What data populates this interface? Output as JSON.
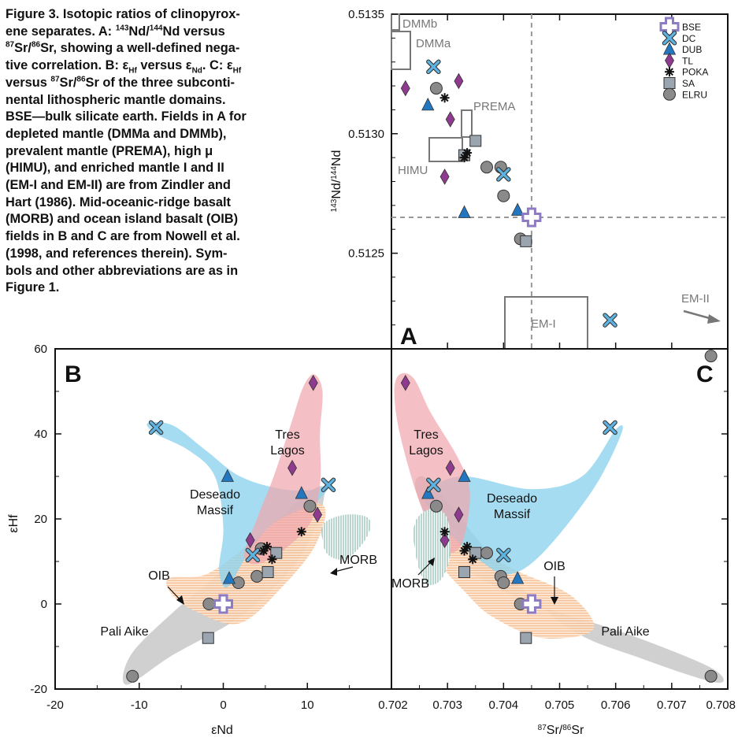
{
  "caption": {
    "lines": [
      "Figure 3. Isotopic ratios of clinopyrox-",
      "ene separates. A: {143}Nd/{144}Nd versus",
      "{87}Sr/{86}Sr, showing a well-defined nega-",
      "tive correlation. B: ε[Hf] versus ε[Nd]. C: ε[Hf]",
      "versus {87}Sr/{86}Sr of the three subconti-",
      "nental lithospheric mantle domains.",
      "BSE—bulk silicate earth. Fields in A for",
      "depleted mantle (DMMa and DMMb),",
      "prevalent mantle (PREMA), high μ",
      "(HIMU), and enriched mantle I and II",
      "(EM-I and EM-II) are from Zindler and",
      "Hart (1986). Mid-oceanic-ridge basalt",
      "(MORB) and ocean island basalt (OIB)",
      "fields in B and C are from Nowell et al.",
      "(1998, and references therein). Sym-",
      "bols and other abbreviations are as in",
      "Figure 1."
    ]
  },
  "legend": [
    {
      "label": "BSE",
      "marker": "cross",
      "color": "#8e7cc3"
    },
    {
      "label": "DC",
      "marker": "x",
      "color": "#5fb3e0"
    },
    {
      "label": "DUB",
      "marker": "triangle",
      "color": "#2277c0"
    },
    {
      "label": "TL",
      "marker": "diamond",
      "color": "#8e3a8e"
    },
    {
      "label": "POKA",
      "marker": "star",
      "color": "#111111"
    },
    {
      "label": "SA",
      "marker": "square",
      "color": "#9aa5b0"
    },
    {
      "label": "ELRU",
      "marker": "circle",
      "color": "#8a8a8a"
    }
  ],
  "fields_A": {
    "dmmb": "DMMb",
    "dmma": "DMMa",
    "prema": "PREMA",
    "himu": "HIMU",
    "em1": "EM-I",
    "em2": "EM-II"
  },
  "regions": {
    "tres_lagos": "Tres Lagos",
    "deseado": "Deseado Massif",
    "pali_aike": "Pali Aike",
    "morb": "MORB",
    "oib": "OIB"
  },
  "panels": {
    "A": "A",
    "B": "B",
    "C": "C"
  },
  "chart_data": [
    {
      "panel": "A",
      "type": "scatter",
      "xlabel": "",
      "ylabel": "143Nd/144Nd",
      "xlim": [
        0.702,
        0.708
      ],
      "ylim": [
        0.5121,
        0.5135
      ],
      "yticks": [
        "0.5125",
        "0.5130",
        "0.5135"
      ],
      "reference_lines": {
        "x": 0.7045,
        "y": 0.51265
      },
      "series": [
        {
          "name": "BSE",
          "points": [
            [
              0.7045,
              0.51265
            ]
          ]
        },
        {
          "name": "DC",
          "points": [
            [
              0.70275,
              0.51328
            ],
            [
              0.704,
              0.51283
            ],
            [
              0.7059,
              0.51222
            ]
          ]
        },
        {
          "name": "DUB",
          "points": [
            [
              0.70265,
              0.51312
            ],
            [
              0.7033,
              0.51267
            ],
            [
              0.70425,
              0.51268
            ]
          ]
        },
        {
          "name": "TL",
          "points": [
            [
              0.70225,
              0.51319
            ],
            [
              0.7032,
              0.51322
            ],
            [
              0.70305,
              0.51306
            ],
            [
              0.70295,
              0.51282
            ]
          ]
        },
        {
          "name": "POKA",
          "points": [
            [
              0.70295,
              0.51315
            ],
            [
              0.70335,
              0.51292
            ],
            [
              0.7033,
              0.5129
            ]
          ]
        },
        {
          "name": "SA",
          "points": [
            [
              0.7033,
              0.51291
            ],
            [
              0.7035,
              0.51297
            ],
            [
              0.7044,
              0.51255
            ]
          ]
        },
        {
          "name": "ELRU",
          "points": [
            [
              0.7028,
              0.51319
            ],
            [
              0.7037,
              0.51286
            ],
            [
              0.70395,
              0.51286
            ],
            [
              0.704,
              0.51274
            ],
            [
              0.7043,
              0.51256
            ],
            [
              0.7077,
              0.51207
            ]
          ]
        }
      ]
    },
    {
      "panel": "B",
      "type": "scatter",
      "xlabel": "εNd",
      "ylabel": "εHf",
      "xlim": [
        -20,
        20
      ],
      "ylim": [
        -20,
        60
      ],
      "xticks": [
        "-20",
        "-10",
        "0",
        "10"
      ],
      "yticks": [
        "-20",
        "0",
        "20",
        "40",
        "60"
      ],
      "series": [
        {
          "name": "BSE",
          "points": [
            [
              0,
              0
            ]
          ]
        },
        {
          "name": "DC",
          "points": [
            [
              -8,
              41.5
            ],
            [
              3.5,
              11.5
            ],
            [
              12.5,
              28
            ]
          ]
        },
        {
          "name": "DUB",
          "points": [
            [
              0.5,
              30
            ],
            [
              0.7,
              6
            ],
            [
              9.3,
              26
            ]
          ]
        },
        {
          "name": "TL",
          "points": [
            [
              10.7,
              52
            ],
            [
              8.2,
              32
            ],
            [
              3.2,
              15
            ],
            [
              11.2,
              21
            ]
          ]
        },
        {
          "name": "POKA",
          "points": [
            [
              5.2,
              13.5
            ],
            [
              4.8,
              12.5
            ],
            [
              5.8,
              10.5
            ],
            [
              9.3,
              17
            ]
          ]
        },
        {
          "name": "SA",
          "points": [
            [
              6.3,
              12
            ],
            [
              5.3,
              7.5
            ],
            [
              -1.8,
              -8
            ]
          ]
        },
        {
          "name": "ELRU",
          "points": [
            [
              -10.8,
              -17
            ],
            [
              -1.7,
              0
            ],
            [
              1.8,
              5
            ],
            [
              4,
              6.5
            ],
            [
              4.5,
              13
            ],
            [
              10.3,
              23
            ]
          ]
        }
      ]
    },
    {
      "panel": "C",
      "type": "scatter",
      "xlabel": "87Sr/86Sr",
      "ylabel": "",
      "xlim": [
        0.702,
        0.708
      ],
      "ylim": [
        -20,
        60
      ],
      "xticks": [
        "0.702",
        "0.703",
        "0.704",
        "0.705",
        "0.706",
        "0.707",
        "0.708"
      ],
      "series": [
        {
          "name": "BSE",
          "points": [
            [
              0.7045,
              0
            ]
          ]
        },
        {
          "name": "DC",
          "points": [
            [
              0.7059,
              41.5
            ],
            [
              0.70275,
              28
            ],
            [
              0.704,
              11.5
            ]
          ]
        },
        {
          "name": "DUB",
          "points": [
            [
              0.7033,
              30
            ],
            [
              0.70265,
              26
            ],
            [
              0.70425,
              6
            ]
          ]
        },
        {
          "name": "TL",
          "points": [
            [
              0.70225,
              52
            ],
            [
              0.70305,
              32
            ],
            [
              0.7032,
              21
            ],
            [
              0.70295,
              15
            ]
          ]
        },
        {
          "name": "POKA",
          "points": [
            [
              0.70295,
              17
            ],
            [
              0.70335,
              13.5
            ],
            [
              0.7033,
              12.5
            ],
            [
              0.70345,
              10.5
            ]
          ]
        },
        {
          "name": "SA",
          "points": [
            [
              0.7035,
              12
            ],
            [
              0.7033,
              7.5
            ],
            [
              0.7044,
              -8
            ]
          ]
        },
        {
          "name": "ELRU",
          "points": [
            [
              0.7028,
              23
            ],
            [
              0.7037,
              12
            ],
            [
              0.70395,
              6.5
            ],
            [
              0.704,
              5
            ],
            [
              0.7043,
              0
            ],
            [
              0.7077,
              -17
            ]
          ]
        }
      ]
    }
  ]
}
